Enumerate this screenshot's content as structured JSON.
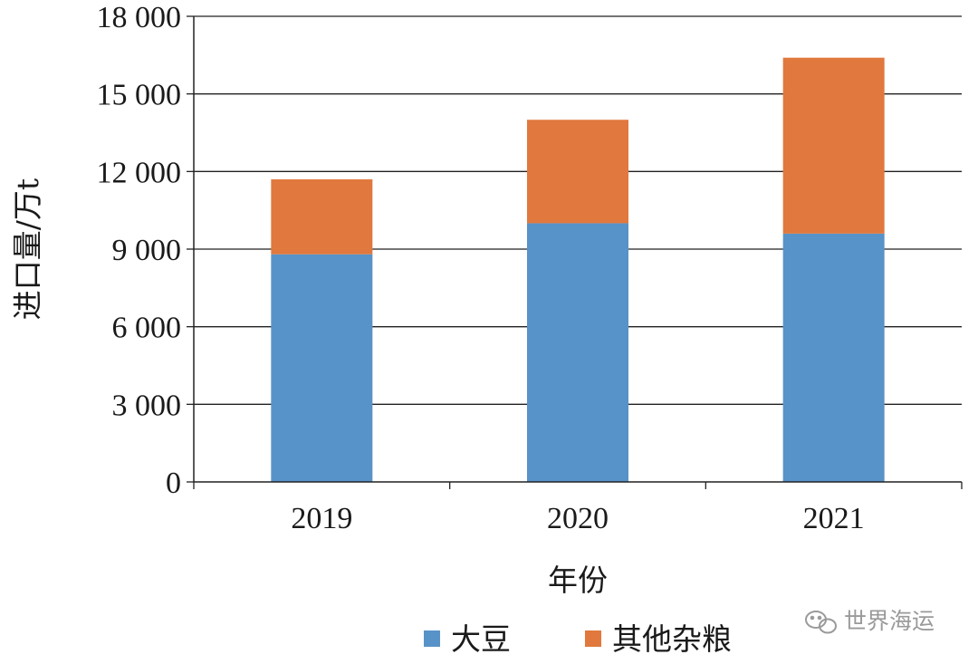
{
  "chart_data": {
    "type": "bar",
    "stacked": true,
    "categories": [
      "2019",
      "2020",
      "2021"
    ],
    "series": [
      {
        "name": "大豆",
        "values": [
          8800,
          10000,
          9600
        ],
        "color": "#5793c8"
      },
      {
        "name": "其他杂粮",
        "values": [
          2900,
          4000,
          6800
        ],
        "color": "#e1783e"
      }
    ],
    "xlabel": "年份",
    "ylabel": "进口量/万t",
    "ylim": [
      0,
      18000
    ],
    "yticks": [
      0,
      3000,
      6000,
      9000,
      12000,
      15000,
      18000
    ],
    "ytick_labels": [
      "0",
      "3 000",
      "6 000",
      "9 000",
      "12 000",
      "15 000",
      "18 000"
    ],
    "grid": true,
    "legend_position": "bottom"
  },
  "watermark": {
    "text": "世界海运",
    "icon": "wechat-icon"
  }
}
